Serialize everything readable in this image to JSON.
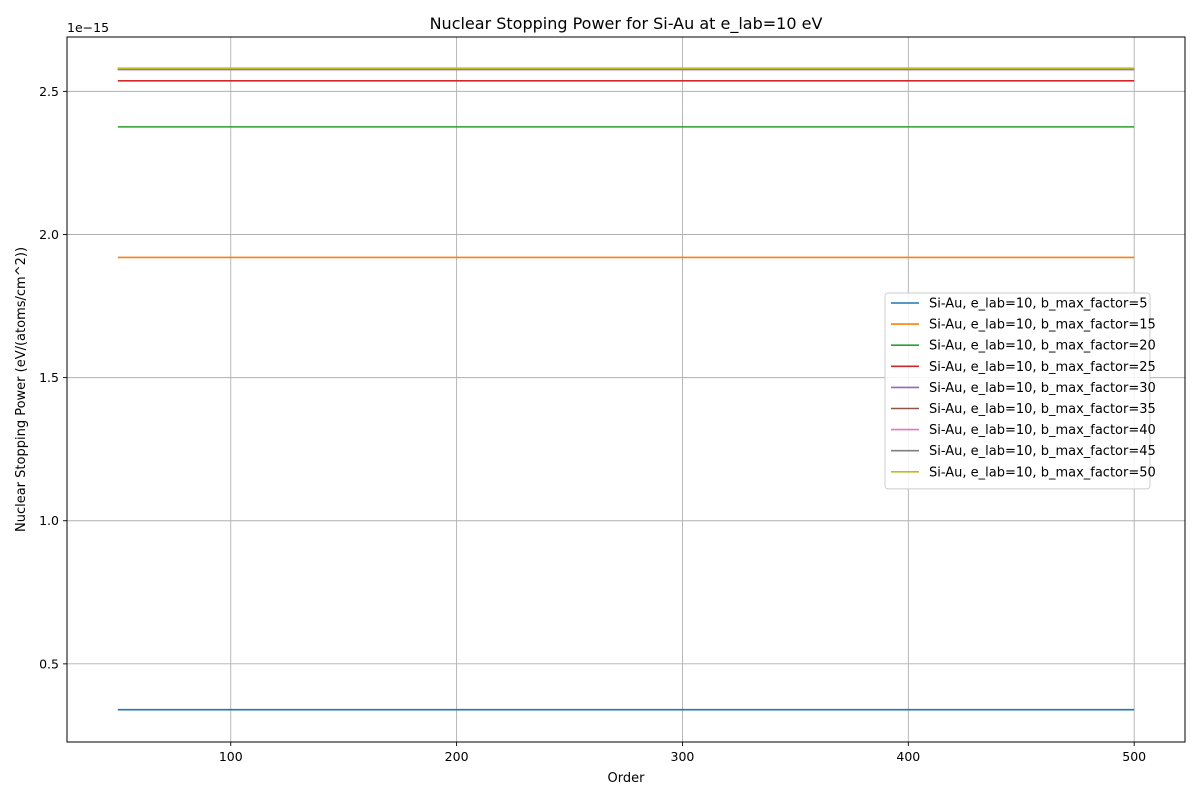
{
  "chart_data": {
    "type": "line",
    "title": "Nuclear Stopping Power for Si-Au at e_lab=10 eV",
    "xlabel": "Order",
    "ylabel": "Nuclear Stopping Power (eV/(atoms/cm^2))",
    "y_scale_label": "1e−15",
    "xlim": [
      27.5,
      522.5
    ],
    "ylim": [
      0.227,
      2.69
    ],
    "x_ticks": [
      100,
      200,
      300,
      400,
      500
    ],
    "x_tick_labels": [
      "100",
      "200",
      "300",
      "400",
      "500"
    ],
    "y_ticks": [
      0.5,
      1.0,
      1.5,
      2.0,
      2.5
    ],
    "y_tick_labels": [
      "0.5",
      "1.0",
      "1.5",
      "2.0",
      "2.5"
    ],
    "grid": true,
    "legend_position": "center-right",
    "x": [
      50,
      500
    ],
    "series": [
      {
        "name": "Si-Au, e_lab=10, b_max_factor=5",
        "color": "#1f77b4",
        "values": [
          0.34,
          0.34
        ]
      },
      {
        "name": "Si-Au, e_lab=10, b_max_factor=15",
        "color": "#ff7f0e",
        "values": [
          1.92,
          1.92
        ]
      },
      {
        "name": "Si-Au, e_lab=10, b_max_factor=20",
        "color": "#2ca02c",
        "values": [
          2.376,
          2.376
        ]
      },
      {
        "name": "Si-Au, e_lab=10, b_max_factor=25",
        "color": "#d62728",
        "values": [
          2.537,
          2.537
        ]
      },
      {
        "name": "Si-Au, e_lab=10, b_max_factor=30",
        "color": "#9467bd",
        "values": [
          2.576,
          2.576
        ]
      },
      {
        "name": "Si-Au, e_lab=10, b_max_factor=35",
        "color": "#8c564b",
        "values": [
          2.578,
          2.578
        ]
      },
      {
        "name": "Si-Au, e_lab=10, b_max_factor=40",
        "color": "#e377c2",
        "values": [
          2.579,
          2.579
        ]
      },
      {
        "name": "Si-Au, e_lab=10, b_max_factor=45",
        "color": "#7f7f7f",
        "values": [
          2.58,
          2.58
        ]
      },
      {
        "name": "Si-Au, e_lab=10, b_max_factor=50",
        "color": "#bcbd22",
        "values": [
          2.581,
          2.581
        ]
      }
    ]
  }
}
